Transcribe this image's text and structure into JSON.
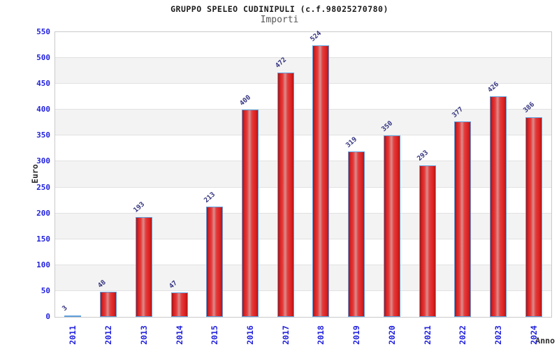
{
  "chart_data": {
    "type": "bar",
    "title": "GRUPPO SPELEO CUDINIPULI (c.f.98025270780)",
    "subtitle": "Importi",
    "xlabel": "Anno",
    "ylabel": "Euro",
    "categories": [
      "2011",
      "2012",
      "2013",
      "2014",
      "2015",
      "2016",
      "2017",
      "2018",
      "2019",
      "2020",
      "2021",
      "2022",
      "2023",
      "2024"
    ],
    "values": [
      3,
      48,
      193,
      47,
      213,
      400,
      472,
      524,
      319,
      350,
      293,
      377,
      426,
      386
    ],
    "ylim": [
      0,
      550
    ],
    "ytick_step": 50,
    "legend_position": "none",
    "grid": "horizontal-bands",
    "colors": {
      "title": "#1a1a1a",
      "subtitle": "#575757",
      "axis_tick_label": "#2222dd",
      "value_label": "#333380",
      "axis_name_label": "#2b2b2b",
      "plot_band": "#f3f3f3",
      "grid_line": "#e1e1e1",
      "plot_border": "#c9c9c9",
      "bar_border": "#5e9fdd",
      "bar_gradient": [
        {
          "color": "#a21515",
          "pos": 0
        },
        {
          "color": "#d92020",
          "pos": 12
        },
        {
          "color": "#e43c3c",
          "pos": 30
        },
        {
          "color": "#d98e8e",
          "pos": 46
        },
        {
          "color": "#e43c3c",
          "pos": 62
        },
        {
          "color": "#dc2222",
          "pos": 85
        },
        {
          "color": "#b01818",
          "pos": 100
        }
      ]
    }
  }
}
